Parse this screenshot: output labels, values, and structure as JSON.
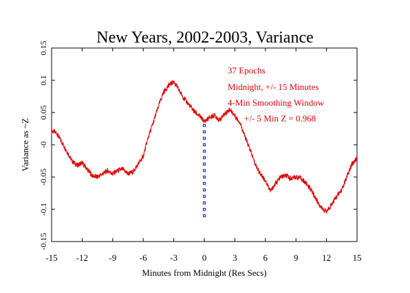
{
  "chart_data": {
    "type": "line",
    "title": "New Years, 2002-2003, Variance",
    "xlabel": "Minutes from Midnight (Res Secs)",
    "ylabel": "Variance as ~Z",
    "xlim": [
      -15,
      15
    ],
    "ylim": [
      -0.15,
      0.15
    ],
    "x_ticks": [
      -15,
      -12,
      -9,
      -6,
      -3,
      0,
      3,
      6,
      9,
      12,
      15
    ],
    "x_tick_labels": [
      "-15",
      "-12",
      "-9",
      "-6",
      "-3",
      "0",
      "3",
      "6",
      "9",
      "12",
      "15"
    ],
    "y_ticks": [
      -0.15,
      -0.1,
      -0.05,
      0,
      0.05,
      0.1,
      0.15
    ],
    "y_tick_labels": [
      "-0.15",
      "-0.1",
      "-0.05",
      "-0",
      "0.05",
      "0.1",
      "0.15"
    ],
    "grid": false,
    "line_color": "#dd0000",
    "marker_color": "#0000ff",
    "annotations": [
      "37 Epochs",
      "Midnight, +/- 15 Minutes",
      "4-Min Smoothing Window",
      "+/- 5 Min Z = 0.968"
    ],
    "series": [
      {
        "x": [
          -15,
          -14.5,
          -14,
          -13.5,
          -13,
          -12.5,
          -12,
          -11.5,
          -11,
          -10.5,
          -10,
          -9.5,
          -9,
          -8.5,
          -8,
          -7.5,
          -7,
          -6.5,
          -6,
          -5.5,
          -5,
          -4.5,
          -4,
          -3.5,
          -3,
          -2.5,
          -2,
          -1.5,
          -1,
          -0.5,
          0,
          0.5,
          1,
          1.5,
          2,
          2.5,
          3,
          3.5,
          4,
          4.5,
          5,
          5.5,
          6,
          6.5,
          7,
          7.5,
          8,
          8.5,
          9,
          9.5,
          10,
          10.5,
          11,
          11.5,
          12,
          12.5,
          13,
          13.5,
          14,
          14.5,
          15
        ],
        "values": [
          0.022,
          0.018,
          0.004,
          -0.01,
          -0.025,
          -0.032,
          -0.028,
          -0.038,
          -0.048,
          -0.05,
          -0.045,
          -0.04,
          -0.045,
          -0.04,
          -0.038,
          -0.045,
          -0.042,
          -0.03,
          -0.018,
          0.012,
          0.035,
          0.06,
          0.082,
          0.092,
          0.098,
          0.085,
          0.072,
          0.062,
          0.052,
          0.045,
          0.036,
          0.042,
          0.046,
          0.038,
          0.048,
          0.055,
          0.045,
          0.035,
          0.012,
          -0.008,
          -0.03,
          -0.045,
          -0.055,
          -0.072,
          -0.06,
          -0.05,
          -0.048,
          -0.052,
          -0.05,
          -0.052,
          -0.06,
          -0.07,
          -0.085,
          -0.098,
          -0.104,
          -0.092,
          -0.08,
          -0.07,
          -0.05,
          -0.03,
          -0.02
        ]
      }
    ],
    "markers": {
      "x": [
        0,
        0,
        0,
        0,
        0,
        0,
        0,
        0,
        0,
        0,
        0,
        0,
        0,
        0,
        0
      ],
      "y": [
        0.03,
        0.02,
        0.01,
        0,
        -0.01,
        -0.02,
        -0.03,
        -0.04,
        -0.05,
        -0.06,
        -0.07,
        -0.08,
        -0.09,
        -0.1,
        -0.11
      ]
    }
  }
}
